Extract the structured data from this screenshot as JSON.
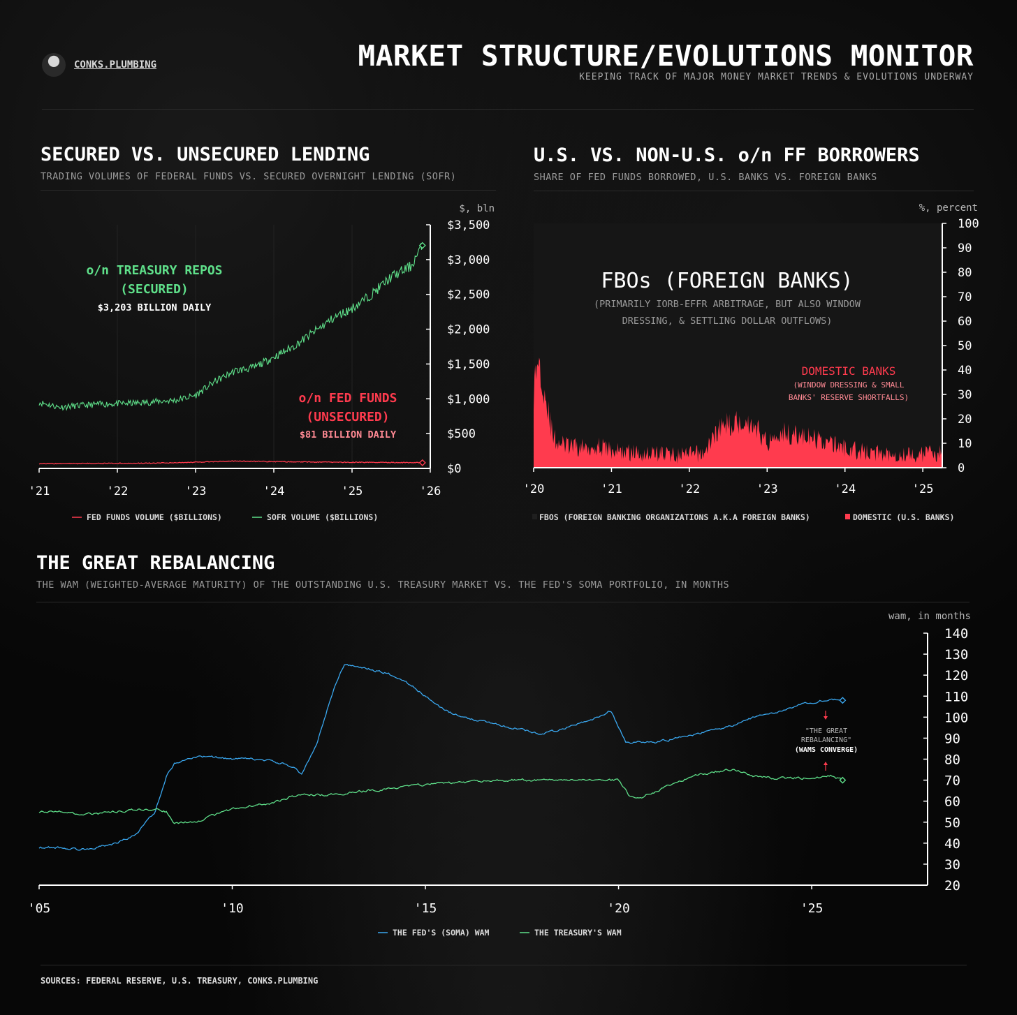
{
  "header": {
    "brand": "CONKS.PLUMBING",
    "title": "MARKET STRUCTURE/EVOLUTIONS MONITOR",
    "subtitle": "KEEPING TRACK OF MAJOR MONEY MARKET TRENDS & EVOLUTIONS UNDERWAY"
  },
  "panel1": {
    "title": "SECURED VS. UNSECURED LENDING",
    "subtitle": "TRADING VOLUMES OF FEDERAL FUNDS VS. SECURED OVERNIGHT LENDING (SOFR)",
    "unit": "$, bln",
    "ann_repo_line1": "o/n TREASURY REPOS",
    "ann_repo_line2": "(SECURED)",
    "ann_repo_value": "$3,203 BILLION DAILY",
    "ann_ff_line1": "o/n FED FUNDS",
    "ann_ff_line2": "(UNSECURED)",
    "ann_ff_value": "$81 BILLION DAILY",
    "legend": [
      "FED FUNDS VOLUME ($BILLIONS)",
      "SOFR VOLUME ($BILLIONS)"
    ]
  },
  "panel2": {
    "title": "U.S. VS. NON-U.S. o/n FF BORROWERS",
    "subtitle": "SHARE OF FED FUNDS BORROWED, U.S. BANKS VS. FOREIGN BANKS",
    "unit": "%, percent",
    "ann_fbo_title": "FBOs (FOREIGN BANKS)",
    "ann_fbo_note1": "(PRIMARILY IORB-EFFR ARBITRAGE, BUT ALSO WINDOW",
    "ann_fbo_note2": "DRESSING, & SETTLING DOLLAR OUTFLOWS)",
    "ann_dom_title": "DOMESTIC BANKS",
    "ann_dom_note1": "(WINDOW DRESSING & SMALL",
    "ann_dom_note2": "BANKS' RESERVE SHORTFALLS)",
    "legend": [
      "FBOS (FOREIGN BANKING ORGANIZATIONS A.K.A FOREIGN BANKS)",
      "DOMESTIC (U.S. BANKS)"
    ]
  },
  "panel3": {
    "title": "THE GREAT REBALANCING",
    "subtitle": "THE WAM (WEIGHTED-AVERAGE MATURITY) OF THE OUTSTANDING U.S. TREASURY MARKET VS. THE FED'S SOMA PORTFOLIO, IN MONTHS",
    "unit": "wam, in months",
    "ann1": "\"THE GREAT",
    "ann2": "REBALANCING\"",
    "ann3": "(WAMS CONVERGE)",
    "legend": [
      "THE FED'S (SOMA) WAM",
      "THE TREASURY'S WAM"
    ]
  },
  "sources": "SOURCES: FEDERAL RESERVE, U.S. TREASURY, CONKS.PLUMBING",
  "colors": {
    "green": "#5fe08a",
    "red": "#ff3b4e",
    "blue": "#3aa8f0",
    "axis": "#ffffff"
  },
  "chart_data": [
    {
      "type": "line",
      "x_unit": "year",
      "xlim": [
        2021.0,
        2026.0
      ],
      "ylim": [
        0,
        3500
      ],
      "xtick_values": [
        2021,
        2022,
        2023,
        2024,
        2025,
        2026
      ],
      "xtick_labels": [
        "'21",
        "'22",
        "'23",
        "'24",
        "'25",
        "'26"
      ],
      "ytick_values": [
        0,
        500,
        1000,
        1500,
        2000,
        2500,
        3000,
        3500
      ],
      "ytick_labels": [
        "$0",
        "$500",
        "$1,000",
        "$1,500",
        "$2,000",
        "$2,500",
        "$3,000",
        "$3,500"
      ],
      "series": [
        {
          "name": "SOFR VOLUME ($BILLIONS)",
          "color": "#5fe08a",
          "jitter": 50,
          "x": [
            2021.0,
            2021.25,
            2021.5,
            2021.75,
            2022.0,
            2022.25,
            2022.5,
            2022.75,
            2023.0,
            2023.25,
            2023.5,
            2023.75,
            2024.0,
            2024.25,
            2024.5,
            2024.75,
            2025.0,
            2025.25,
            2025.5,
            2025.75,
            2025.9
          ],
          "y": [
            950,
            880,
            900,
            920,
            930,
            940,
            960,
            980,
            1050,
            1250,
            1400,
            1450,
            1600,
            1750,
            1950,
            2150,
            2300,
            2500,
            2750,
            2900,
            3203
          ]
        },
        {
          "name": "FED FUNDS VOLUME ($BILLIONS)",
          "color": "#ff3b4e",
          "jitter": 6,
          "x": [
            2021.0,
            2021.5,
            2022.0,
            2022.5,
            2023.0,
            2023.5,
            2024.0,
            2024.5,
            2025.0,
            2025.5,
            2025.9
          ],
          "y": [
            68,
            70,
            72,
            75,
            90,
            105,
            98,
            92,
            88,
            85,
            81
          ]
        }
      ]
    },
    {
      "type": "area",
      "x_unit": "year",
      "xlim": [
        2020.0,
        2025.25
      ],
      "ylim": [
        0,
        100
      ],
      "xtick_values": [
        2020,
        2021,
        2022,
        2023,
        2024,
        2025
      ],
      "xtick_labels": [
        "'20",
        "'21",
        "'22",
        "'23",
        "'24",
        "'25"
      ],
      "ytick_values": [
        0,
        10,
        20,
        30,
        40,
        50,
        60,
        70,
        80,
        90,
        100
      ],
      "series": [
        {
          "name": "DOMESTIC (U.S. BANKS)",
          "color": "#ff3b4e",
          "jitter": 3,
          "x": [
            2020.0,
            2020.05,
            2020.12,
            2020.25,
            2020.4,
            2020.6,
            2020.8,
            2021.0,
            2021.3,
            2021.6,
            2021.9,
            2022.2,
            2022.35,
            2022.5,
            2022.7,
            2022.85,
            2023.0,
            2023.15,
            2023.4,
            2023.7,
            2024.0,
            2024.3,
            2024.6,
            2024.9,
            2025.1,
            2025.25
          ],
          "y": [
            30,
            45,
            35,
            12,
            9,
            8,
            9,
            7,
            6,
            6,
            5,
            6,
            15,
            18,
            19,
            17,
            10,
            15,
            13,
            11,
            8,
            6,
            6,
            5,
            6,
            6
          ]
        },
        {
          "name": "FBOS (FOREIGN BANKING ORGANIZATIONS A.K.A FOREIGN BANKS)",
          "color": "#1c1c1c",
          "note": "remainder of 100%"
        }
      ]
    },
    {
      "type": "line",
      "x_unit": "year",
      "xlim": [
        2005.0,
        2028.0
      ],
      "ylim": [
        20,
        140
      ],
      "xtick_values": [
        2005,
        2010,
        2015,
        2020,
        2025
      ],
      "xtick_labels": [
        "'05",
        "'10",
        "'15",
        "'20",
        "'25"
      ],
      "ytick_values": [
        20,
        30,
        40,
        50,
        60,
        70,
        80,
        90,
        100,
        110,
        120,
        130,
        140
      ],
      "series": [
        {
          "name": "THE FED'S (SOMA) WAM",
          "color": "#3aa8f0",
          "x": [
            2005.0,
            2005.5,
            2006.0,
            2006.5,
            2007.0,
            2007.5,
            2008.0,
            2008.3,
            2008.5,
            2009.0,
            2009.5,
            2010.0,
            2010.5,
            2011.0,
            2011.5,
            2011.8,
            2012.2,
            2012.6,
            2012.9,
            2013.5,
            2014.0,
            2014.5,
            2015.0,
            2015.5,
            2016.0,
            2016.5,
            2017.0,
            2017.5,
            2018.0,
            2018.5,
            2019.0,
            2019.5,
            2019.8,
            2020.2,
            2020.5,
            2021.0,
            2021.5,
            2022.0,
            2022.5,
            2023.0,
            2023.5,
            2024.0,
            2024.5,
            2025.0,
            2025.5,
            2025.8
          ],
          "y": [
            38,
            38,
            37,
            38,
            40,
            44,
            55,
            72,
            78,
            81,
            81,
            80,
            80,
            79,
            77,
            73,
            88,
            112,
            125,
            123,
            121,
            117,
            110,
            103,
            100,
            98,
            96,
            94,
            92,
            94,
            97,
            100,
            103,
            88,
            88,
            88,
            90,
            92,
            94,
            96,
            100,
            102,
            105,
            107,
            109,
            108
          ]
        },
        {
          "name": "THE TREASURY'S WAM",
          "color": "#5fe08a",
          "x": [
            2005.0,
            2005.5,
            2006.0,
            2006.5,
            2007.0,
            2007.5,
            2008.0,
            2008.3,
            2008.5,
            2008.8,
            2009.0,
            2009.5,
            2010.0,
            2010.5,
            2011.0,
            2011.5,
            2012.0,
            2012.5,
            2013.0,
            2013.5,
            2014.0,
            2015.0,
            2016.0,
            2017.0,
            2018.0,
            2019.0,
            2020.0,
            2020.3,
            2020.6,
            2021.0,
            2021.5,
            2022.0,
            2022.5,
            2023.0,
            2023.5,
            2024.0,
            2024.5,
            2025.0,
            2025.5,
            2025.8
          ],
          "y": [
            55,
            55,
            54,
            54,
            55,
            56,
            56,
            55,
            49,
            50,
            50,
            53,
            56,
            58,
            59,
            62,
            63,
            63,
            64,
            65,
            66,
            68,
            69,
            70,
            70,
            70,
            70,
            62,
            62,
            65,
            69,
            72,
            74,
            75,
            72,
            71,
            71,
            71,
            72,
            70
          ]
        }
      ]
    }
  ]
}
